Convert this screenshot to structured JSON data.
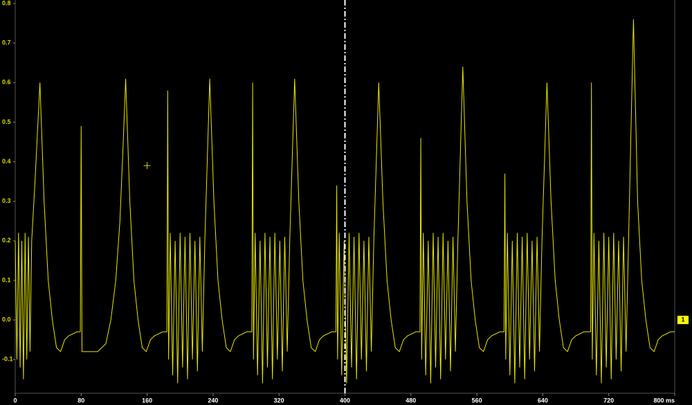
{
  "chart_data": {
    "type": "line",
    "x": [
      0,
      2,
      4,
      6,
      8,
      10,
      12,
      14,
      16,
      18,
      20,
      24,
      30,
      35,
      40,
      45,
      50,
      55,
      60,
      65,
      75,
      79,
      80,
      81,
      90,
      100,
      110,
      116,
      122,
      127,
      131,
      134,
      139,
      144,
      149,
      154,
      159,
      164,
      169,
      179,
      184,
      185,
      186,
      188,
      191,
      194,
      197,
      200,
      203,
      206,
      209,
      212,
      215,
      218,
      221,
      224,
      227,
      230,
      236,
      241,
      246,
      251,
      256,
      261,
      266,
      271,
      281,
      287,
      288,
      289,
      291,
      294,
      297,
      300,
      303,
      306,
      309,
      312,
      315,
      318,
      321,
      324,
      327,
      330,
      333,
      339,
      344,
      349,
      354,
      359,
      364,
      369,
      374,
      384,
      389,
      390,
      391,
      393,
      396,
      399,
      402,
      405,
      408,
      411,
      414,
      417,
      420,
      423,
      426,
      429,
      432,
      435,
      441,
      446,
      451,
      456,
      461,
      466,
      471,
      476,
      486,
      491,
      492,
      493,
      495,
      498,
      501,
      504,
      507,
      510,
      513,
      516,
      519,
      522,
      525,
      528,
      531,
      534,
      537,
      543,
      548,
      553,
      558,
      563,
      568,
      573,
      578,
      588,
      593,
      594,
      595,
      597,
      600,
      603,
      606,
      609,
      612,
      615,
      618,
      621,
      624,
      627,
      630,
      633,
      636,
      639,
      645,
      650,
      655,
      660,
      665,
      670,
      675,
      680,
      690,
      698,
      699,
      700,
      702,
      705,
      708,
      711,
      714,
      717,
      720,
      723,
      726,
      729,
      732,
      735,
      738,
      741,
      744,
      750,
      755,
      760,
      765,
      770,
      775,
      780,
      785,
      795,
      800
    ],
    "series": [
      {
        "color": "#e8e800",
        "values": [
          0.2,
          -0.1,
          0.22,
          -0.12,
          0.2,
          -0.15,
          0.22,
          -0.1,
          0.21,
          -0.08,
          0.2,
          0.35,
          0.6,
          0.3,
          0.1,
          0.0,
          -0.07,
          -0.08,
          -0.05,
          -0.04,
          -0.03,
          -0.03,
          0.49,
          -0.08,
          -0.08,
          -0.08,
          -0.06,
          0.0,
          0.1,
          0.25,
          0.45,
          0.61,
          0.3,
          0.1,
          0.0,
          -0.07,
          -0.08,
          -0.05,
          -0.04,
          -0.03,
          -0.03,
          0.58,
          -0.1,
          0.22,
          -0.14,
          0.2,
          -0.16,
          0.22,
          -0.12,
          0.21,
          -0.15,
          0.22,
          -0.1,
          0.2,
          -0.13,
          0.21,
          -0.08,
          0.2,
          0.61,
          0.3,
          0.1,
          0.0,
          -0.07,
          -0.08,
          -0.05,
          -0.04,
          -0.03,
          -0.03,
          0.6,
          -0.1,
          0.22,
          -0.14,
          0.2,
          -0.16,
          0.22,
          -0.12,
          0.21,
          -0.15,
          0.22,
          -0.1,
          0.2,
          -0.13,
          0.21,
          -0.08,
          0.2,
          0.61,
          0.3,
          0.1,
          0.0,
          -0.07,
          -0.08,
          -0.05,
          -0.04,
          -0.03,
          -0.03,
          0.34,
          -0.1,
          0.22,
          -0.14,
          0.2,
          -0.16,
          0.22,
          -0.12,
          0.21,
          -0.15,
          0.22,
          -0.1,
          0.2,
          -0.13,
          0.21,
          -0.08,
          0.2,
          0.6,
          0.3,
          0.1,
          0.0,
          -0.07,
          -0.08,
          -0.05,
          -0.04,
          -0.03,
          -0.03,
          0.46,
          -0.1,
          0.22,
          -0.14,
          0.2,
          -0.16,
          0.22,
          -0.12,
          0.21,
          -0.15,
          0.22,
          -0.1,
          0.2,
          -0.13,
          0.21,
          -0.08,
          0.2,
          0.64,
          0.3,
          0.1,
          0.0,
          -0.07,
          -0.08,
          -0.05,
          -0.04,
          -0.03,
          -0.03,
          0.37,
          -0.1,
          0.22,
          -0.14,
          0.2,
          -0.16,
          0.22,
          -0.12,
          0.21,
          -0.15,
          0.22,
          -0.1,
          0.2,
          -0.13,
          0.21,
          -0.08,
          0.2,
          0.6,
          0.3,
          0.1,
          0.0,
          -0.07,
          -0.08,
          -0.05,
          -0.04,
          -0.03,
          -0.03,
          0.6,
          -0.1,
          0.22,
          -0.14,
          0.2,
          -0.16,
          0.22,
          -0.12,
          0.21,
          -0.15,
          0.22,
          -0.1,
          0.2,
          -0.13,
          0.21,
          -0.08,
          0.2,
          0.76,
          0.3,
          0.1,
          0.0,
          -0.07,
          -0.08,
          -0.05,
          -0.04,
          -0.03,
          -0.03
        ]
      }
    ],
    "xlim": [
      0,
      800
    ],
    "ylim": [
      -0.18,
      0.8
    ],
    "xticks": [
      0,
      80,
      160,
      240,
      320,
      400,
      480,
      560,
      640,
      720,
      {
        "value": 800,
        "label": "800 ms"
      }
    ],
    "yticks": [
      -0.1,
      {
        "value": 0,
        "label": "0.0"
      },
      0.1,
      0.2,
      0.3,
      0.4,
      0.5,
      0.6,
      0.7,
      0.8
    ],
    "cursor_x": 400,
    "crosshair": {
      "x": 160,
      "y": 0.39
    },
    "channel_label": "1"
  }
}
